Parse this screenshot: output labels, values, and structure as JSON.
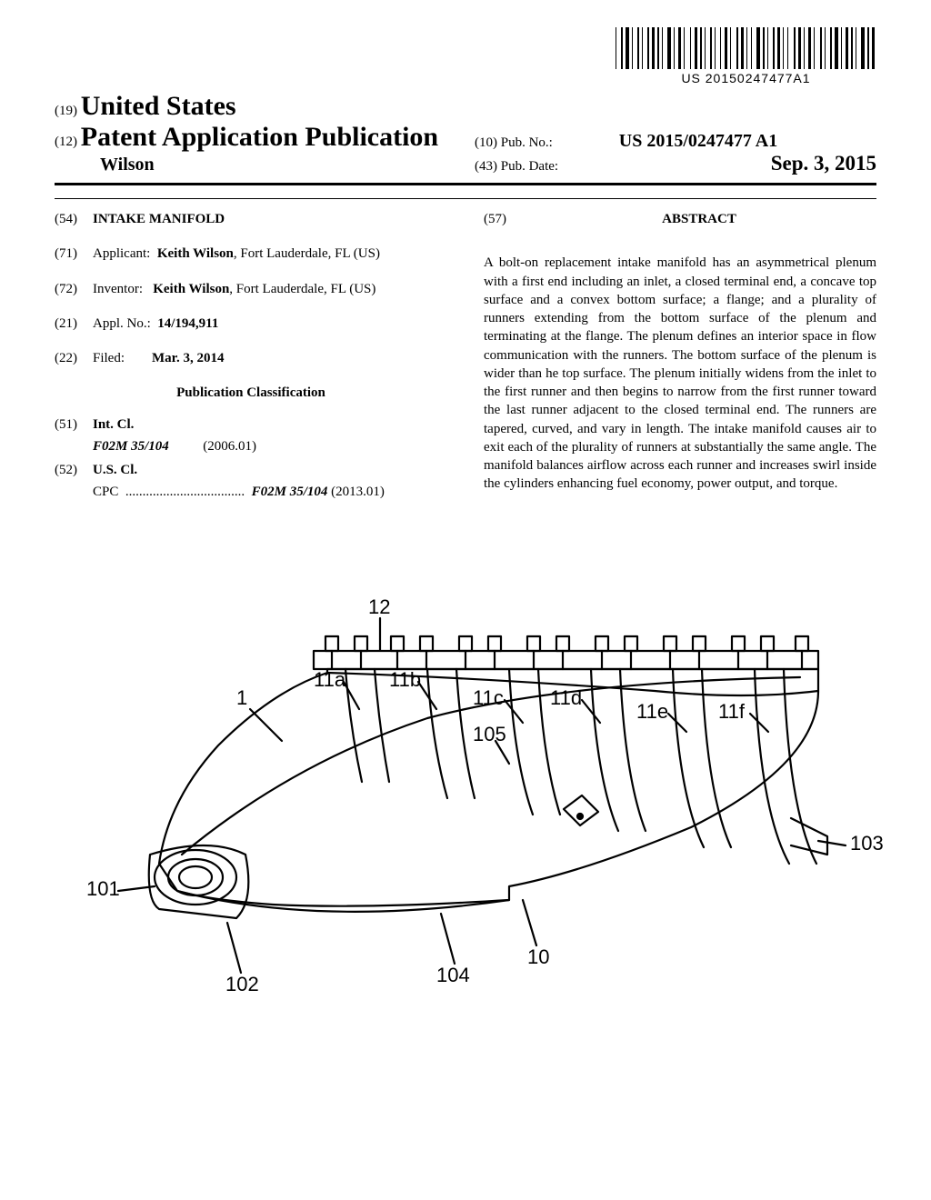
{
  "barcode": {
    "text": "US 20150247477A1",
    "widths": [
      1,
      3,
      2,
      1,
      4,
      1,
      1,
      3,
      2,
      1,
      1,
      3,
      2,
      1,
      3,
      1,
      2,
      1,
      1,
      3,
      4,
      1,
      1,
      2,
      3,
      1,
      1,
      4,
      1,
      2,
      3,
      1,
      2,
      1,
      1,
      3,
      2,
      1,
      1,
      3,
      1,
      2,
      3,
      1,
      1,
      4,
      2,
      1,
      3,
      1,
      1,
      2,
      1,
      3,
      4,
      1,
      2,
      1,
      1,
      3,
      2,
      1,
      3,
      1,
      1,
      2,
      1,
      4,
      2,
      1,
      3,
      1,
      1,
      2,
      3,
      1,
      1,
      4,
      2,
      1,
      1,
      3,
      2,
      1,
      4,
      1,
      1,
      2,
      3,
      1,
      2,
      1,
      1,
      3,
      4,
      1,
      2,
      1,
      3,
      1
    ]
  },
  "header": {
    "country_code": "(19)",
    "country": "United States",
    "pub_code": "(12)",
    "pub_type": "Patent Application Publication",
    "inventor_short": "Wilson",
    "pubno_code": "(10)",
    "pubno_label": "Pub. No.:",
    "pubno": "US 2015/0247477 A1",
    "date_code": "(43)",
    "date_label": "Pub. Date:",
    "date": "Sep. 3, 2015"
  },
  "left": {
    "title_code": "(54)",
    "title": "INTAKE MANIFOLD",
    "applicant_code": "(71)",
    "applicant_label": "Applicant:",
    "applicant": "Keith Wilson",
    "applicant_loc": ", Fort Lauderdale, FL (US)",
    "inventor_code": "(72)",
    "inventor_label": "Inventor:",
    "inventor": "Keith Wilson",
    "inventor_loc": ", Fort Lauderdale, FL (US)",
    "applno_code": "(21)",
    "applno_label": "Appl. No.:",
    "applno": "14/194,911",
    "filed_code": "(22)",
    "filed_label": "Filed:",
    "filed": "Mar. 3, 2014",
    "pubclass_heading": "Publication Classification",
    "intcl_code": "(51)",
    "intcl_label": "Int. Cl.",
    "intcl_class": "F02M 35/104",
    "intcl_year": "(2006.01)",
    "uscl_code": "(52)",
    "uscl_label": "U.S. Cl.",
    "cpc_label": "CPC",
    "cpc_dots": "...................................",
    "cpc_class": "F02M 35/104",
    "cpc_year": "(2013.01)"
  },
  "right": {
    "abstract_code": "(57)",
    "abstract_heading": "ABSTRACT",
    "abstract_text": "A bolt-on replacement intake manifold has an asymmetrical plenum with a first end including an inlet, a closed terminal end, a concave top surface and a convex bottom surface; a flange; and a plurality of runners extending from the bottom surface of the plenum and terminating at the flange. The plenum defines an interior space in flow communication with the runners. The bottom surface of the plenum is wider than he top surface. The plenum initially widens from the inlet to the first runner and then begins to narrow from the first runner toward the last runner adjacent to the closed terminal end. The runners are tapered, curved, and vary in length. The intake manifold causes air to exit each of the plurality of runners at substantially the same angle. The manifold balances airflow across each runner and increases swirl inside the cylinders enhancing fuel economy, power output, and torque."
  },
  "figure": {
    "labels": {
      "l1": "1",
      "l12": "12",
      "l11a": "11a",
      "l11b": "11b",
      "l11c": "11c",
      "l11d": "11d",
      "l11e": "11e",
      "l11f": "11f",
      "l105": "105",
      "l10": "10",
      "l101": "101",
      "l102": "102",
      "l103": "103",
      "l104": "104"
    },
    "stroke_color": "#000000",
    "stroke_width": 2.2,
    "font_size": 22
  }
}
